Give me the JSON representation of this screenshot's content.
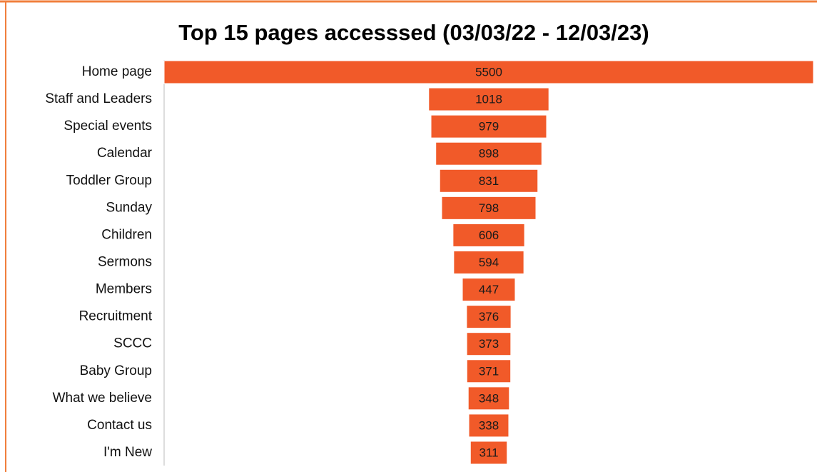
{
  "chart_data": {
    "type": "funnel",
    "title": "Top 15 pages accesssed (03/03/22 - 12/03/23)",
    "categories": [
      "Home page",
      "Staff and Leaders",
      "Special events",
      "Calendar",
      "Toddler Group",
      "Sunday",
      "Children",
      "Sermons",
      "Members",
      "Recruitment",
      "SCCC",
      "Baby Group",
      "What we believe",
      "Contact us",
      "I'm New"
    ],
    "values": [
      5500,
      1018,
      979,
      898,
      831,
      798,
      606,
      594,
      447,
      376,
      373,
      371,
      348,
      338,
      311
    ],
    "color": "#f15a29"
  }
}
